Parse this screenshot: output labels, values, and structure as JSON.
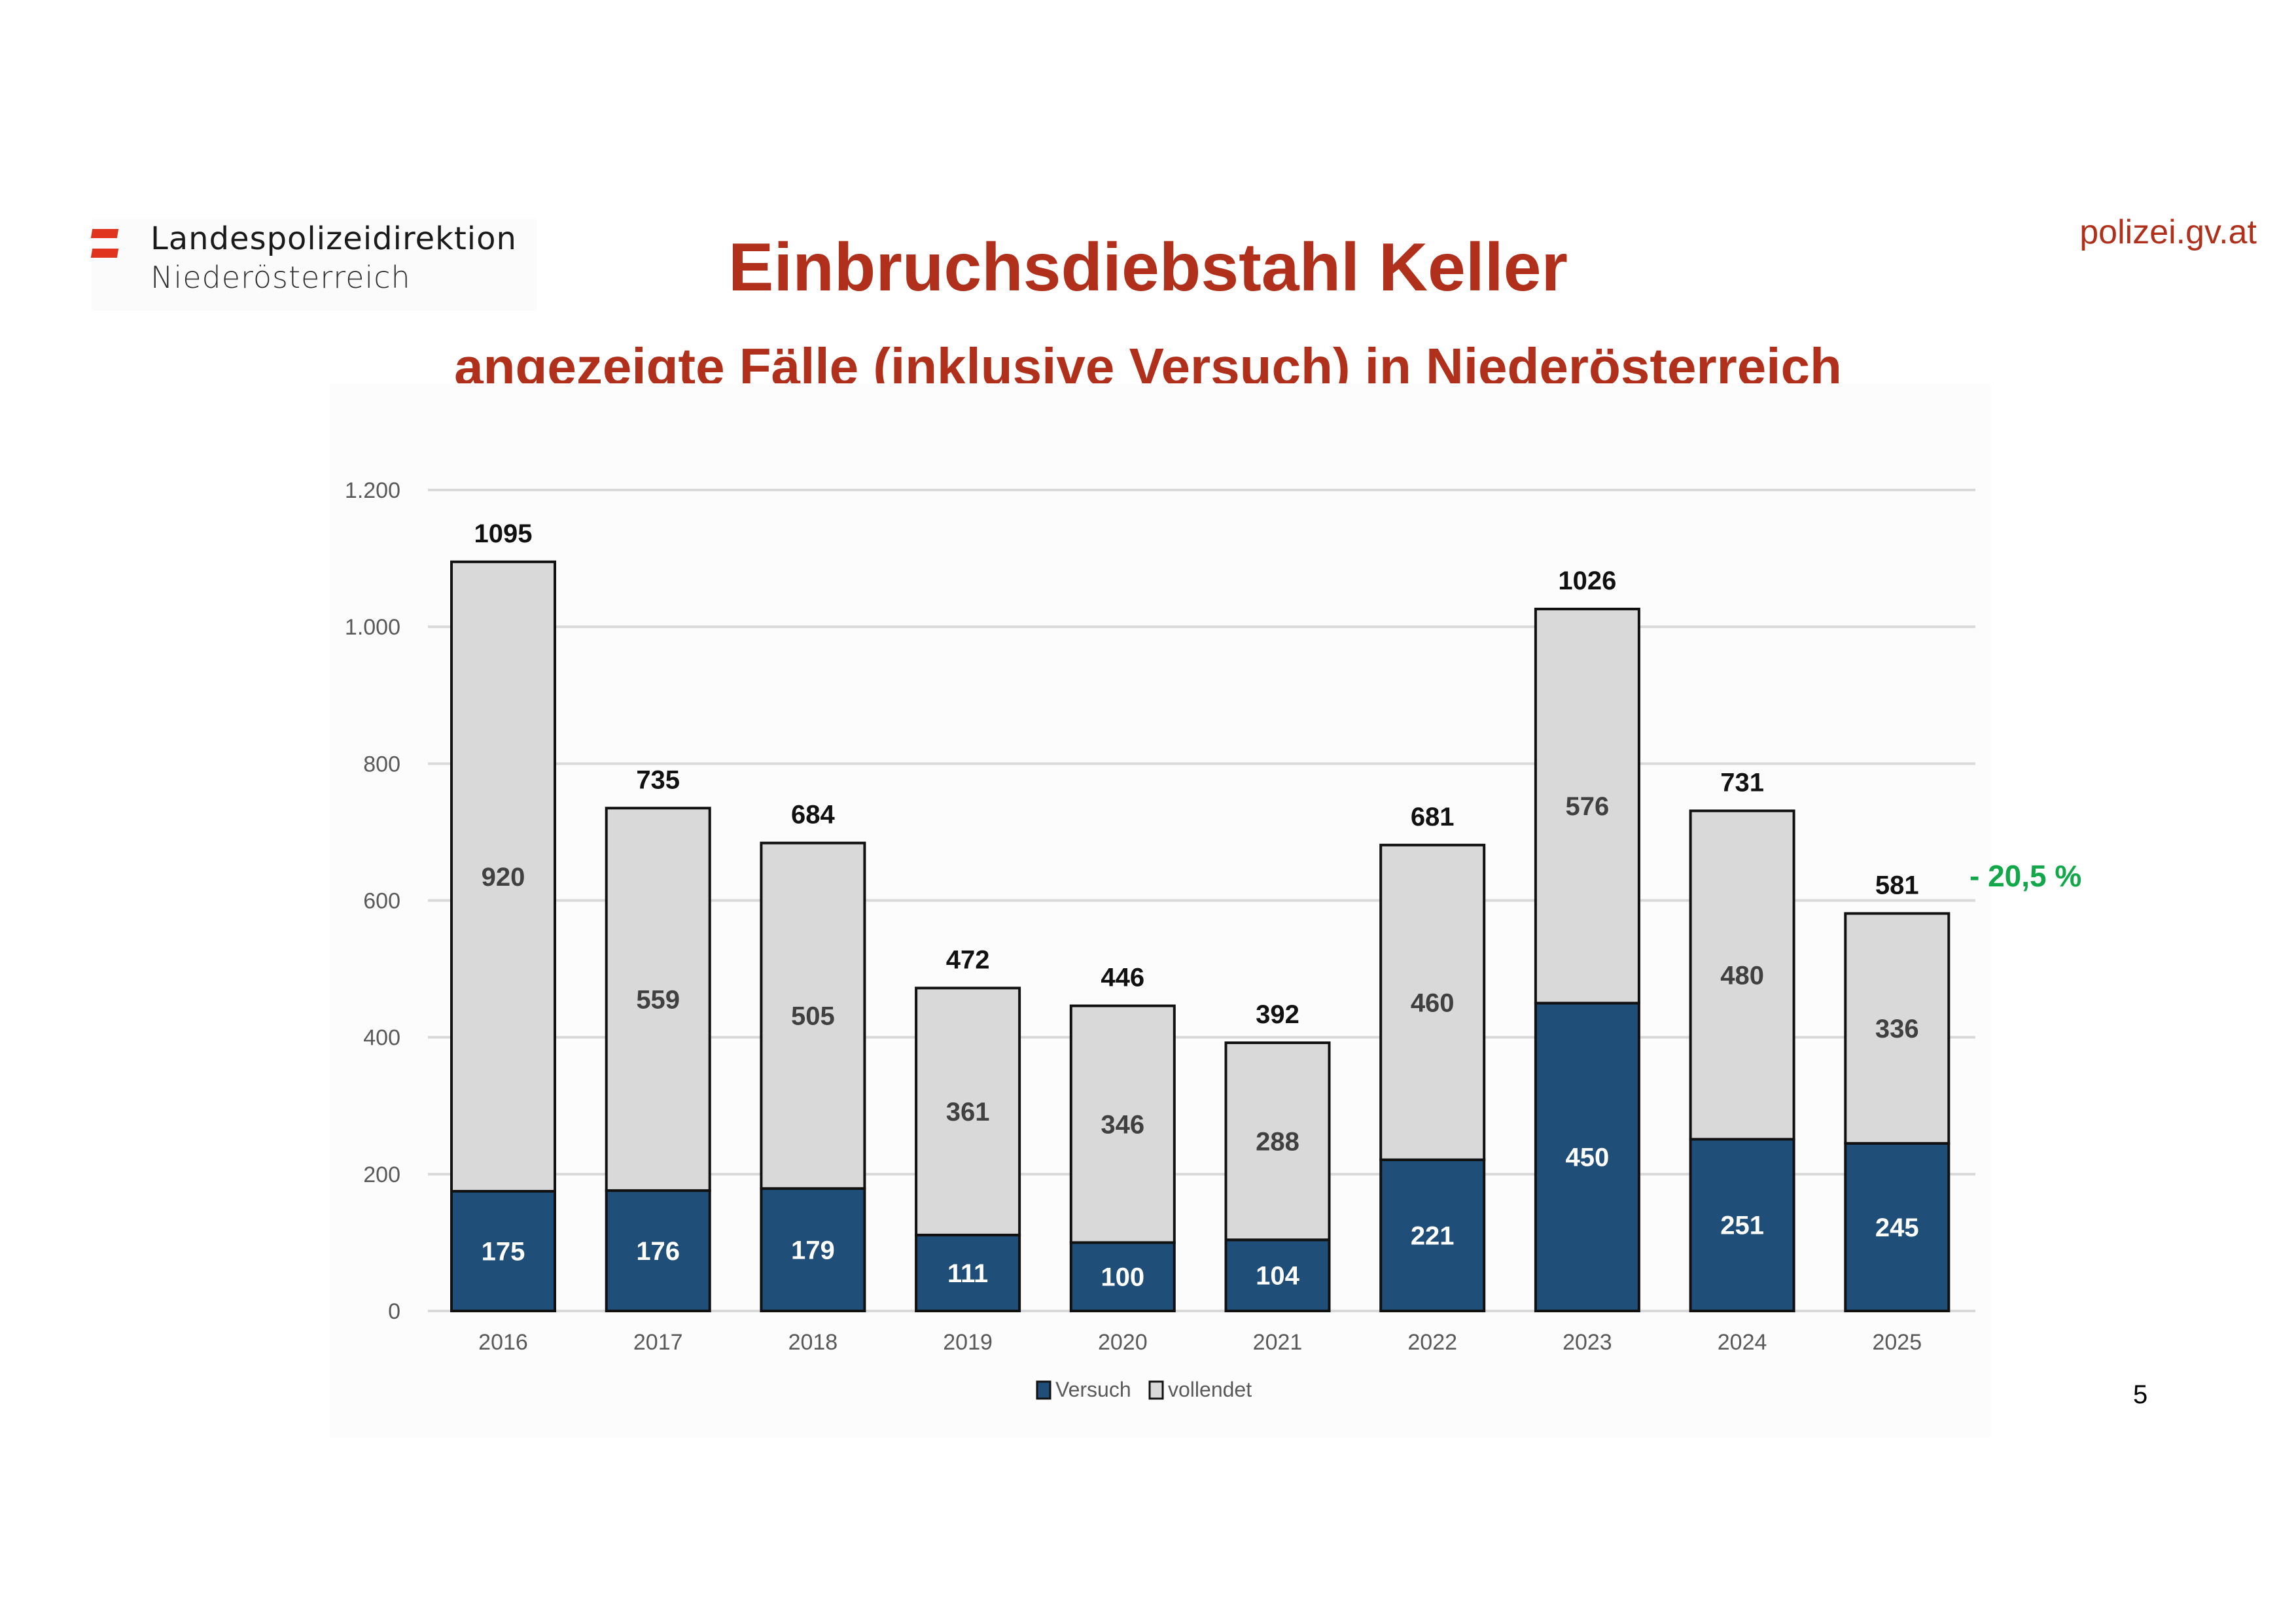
{
  "header": {
    "logo_line1": "Landespolizeidirektion",
    "logo_line2": "Niederösterreich",
    "site": "polizei.gv.at",
    "title": "Einbruchsdiebstahl Keller",
    "subtitle": "angezeigte Fälle (inklusive Versuch) in Niederösterreich"
  },
  "annotation": {
    "change_label": "- 20,5 %",
    "color": "#12a84a"
  },
  "page_number": "5",
  "chart_data": {
    "type": "bar",
    "stacked": true,
    "title": "Einbruchsdiebstahl Keller",
    "subtitle": "angezeigte Fälle (inklusive Versuch) in Niederösterreich",
    "xlabel": "",
    "ylabel": "",
    "ylim": [
      0,
      1200
    ],
    "yticks": [
      0,
      200,
      400,
      600,
      800,
      1000,
      1200
    ],
    "ytick_labels": [
      "0",
      "200",
      "400",
      "600",
      "800",
      "1.000",
      "1.200"
    ],
    "grid": true,
    "legend_position": "bottom",
    "categories": [
      "2016",
      "2017",
      "2018",
      "2019",
      "2020",
      "2021",
      "2022",
      "2023",
      "2024",
      "2025"
    ],
    "series": [
      {
        "name": "Versuch",
        "color": "#1f4e79",
        "values": [
          175,
          176,
          179,
          111,
          100,
          104,
          221,
          450,
          251,
          245
        ]
      },
      {
        "name": "vollendet",
        "color": "#d9d9d9",
        "values": [
          920,
          559,
          505,
          361,
          346,
          288,
          460,
          576,
          480,
          336
        ]
      }
    ],
    "totals": [
      1095,
      735,
      684,
      472,
      446,
      392,
      681,
      1026,
      731,
      581
    ]
  }
}
